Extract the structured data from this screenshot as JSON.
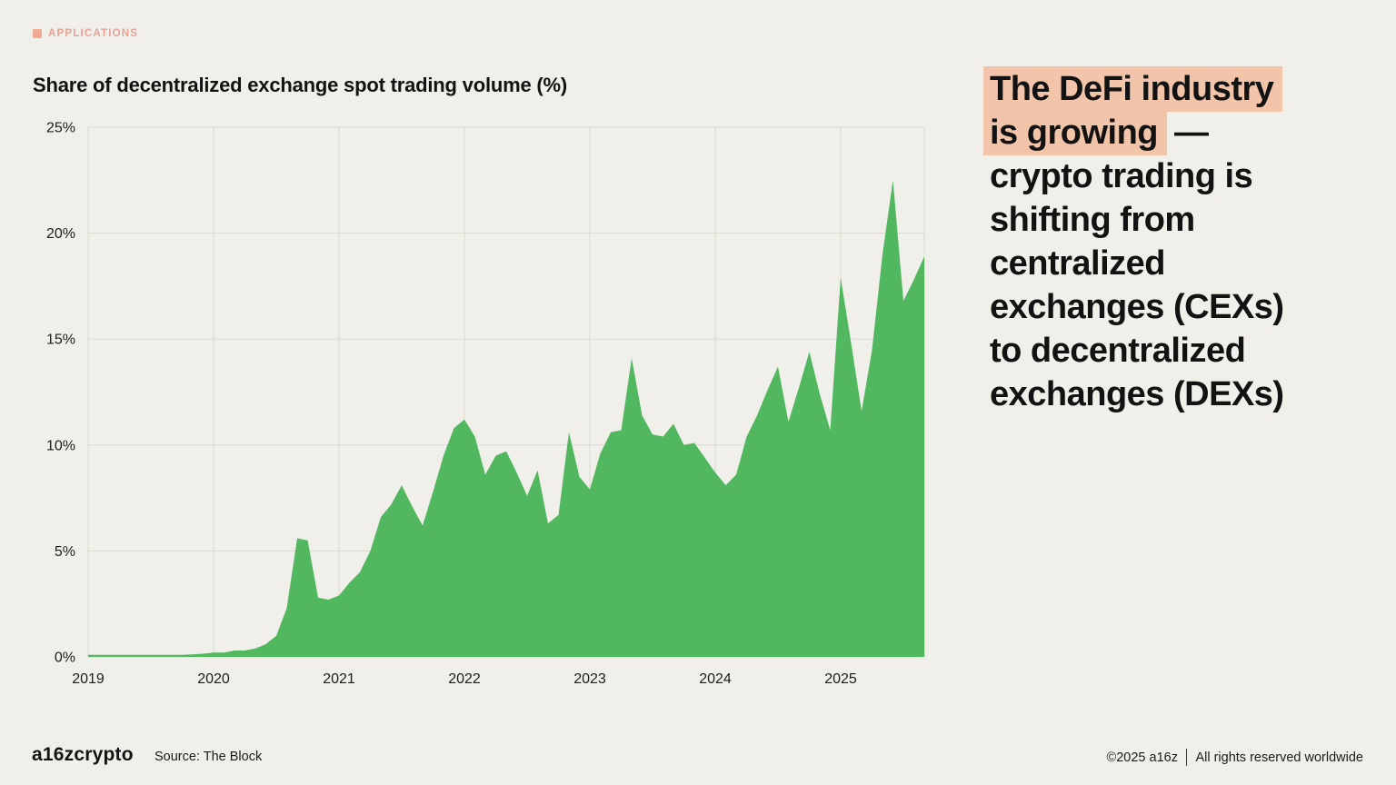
{
  "tag": {
    "label": "APPLICATIONS",
    "color": "#e7a296"
  },
  "chart": {
    "title": "Share of decentralized exchange spot trading volume (%)"
  },
  "chart_data": {
    "type": "area",
    "title": "Share of decentralized exchange spot trading volume (%)",
    "x_start": "2019-01",
    "x_frequency": "monthly",
    "x_tick_labels": [
      "2019",
      "2020",
      "2021",
      "2022",
      "2023",
      "2024",
      "2025"
    ],
    "y_tick_labels": [
      "0%",
      "5%",
      "10%",
      "15%",
      "20%",
      "25%"
    ],
    "ylim": [
      0,
      25
    ],
    "xlabel": "",
    "ylabel": "",
    "grid": true,
    "legend": false,
    "area_color": "#52b860",
    "grid_color": "#d9d8d1",
    "values": [
      0.1,
      0.1,
      0.1,
      0.1,
      0.1,
      0.1,
      0.1,
      0.1,
      0.1,
      0.1,
      0.12,
      0.15,
      0.2,
      0.2,
      0.3,
      0.3,
      0.4,
      0.6,
      1.0,
      2.3,
      5.6,
      5.5,
      2.8,
      2.7,
      2.9,
      3.5,
      4.0,
      5.0,
      6.6,
      7.2,
      8.1,
      7.1,
      6.2,
      7.8,
      9.5,
      10.8,
      11.2,
      10.4,
      8.6,
      9.5,
      9.7,
      8.7,
      7.6,
      8.8,
      6.3,
      6.7,
      10.6,
      8.5,
      7.9,
      9.6,
      10.6,
      10.7,
      14.1,
      11.4,
      10.5,
      10.4,
      11.0,
      10.0,
      10.1,
      9.4,
      8.7,
      8.1,
      8.6,
      10.4,
      11.4,
      12.6,
      13.7,
      11.1,
      12.7,
      14.4,
      12.4,
      10.7,
      17.9,
      14.8,
      11.6,
      14.5,
      19.0,
      22.5,
      16.8,
      17.8,
      18.9
    ],
    "source": "The Block"
  },
  "headline": {
    "lines": [
      "The DeFi industry",
      "is growing",
      "crypto trading is",
      "shifting from",
      "centralized",
      "exchanges (CEXs)",
      "to decentralized",
      "exchanges (DEXs)"
    ],
    "dash": "—",
    "highlight_color": "#f2c4aa"
  },
  "footer": {
    "logo": "a16zcrypto",
    "source": "Source: The Block",
    "copyright": "©2025 a16z",
    "rights": "All rights reserved worldwide"
  }
}
